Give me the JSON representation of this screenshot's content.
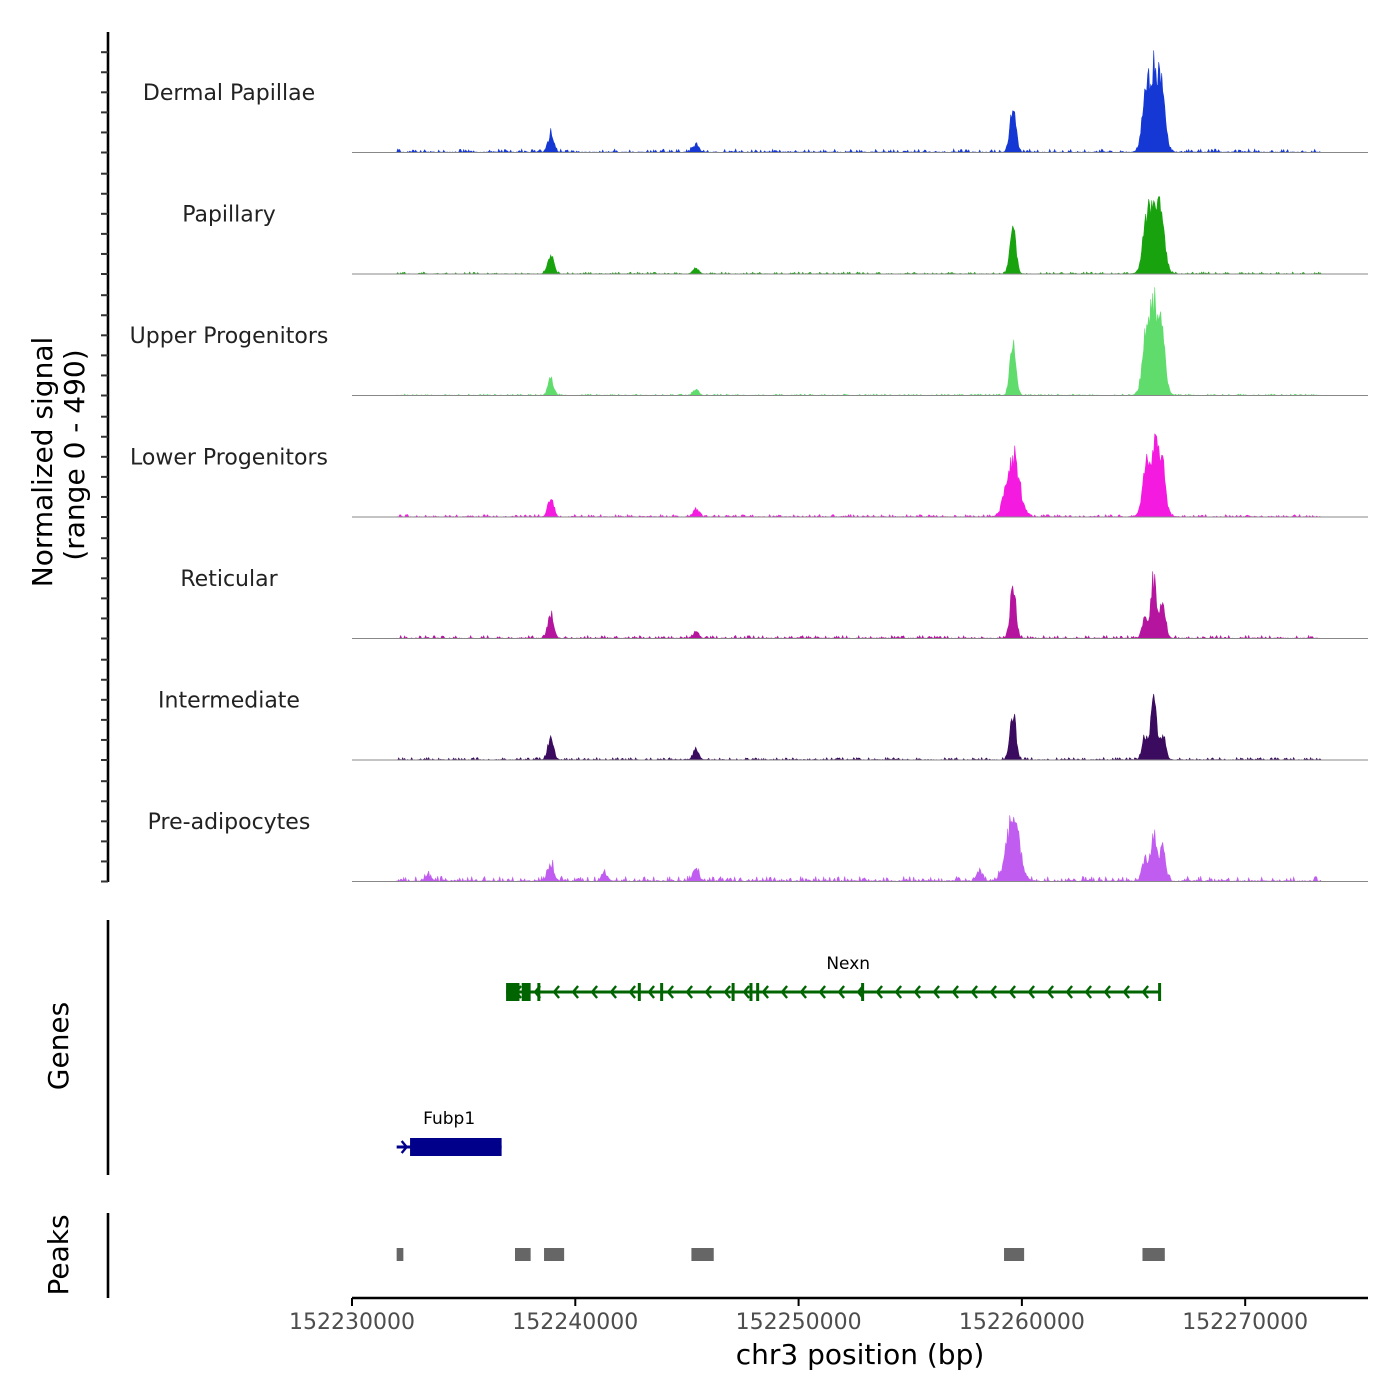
{
  "chart_data": {
    "type": "area",
    "title": "",
    "region": "chr3",
    "xlabel": "chr3 position (bp)",
    "xlim": [
      152230000,
      152275500
    ],
    "xticks": [
      152230000,
      152240000,
      152250000,
      152260000,
      152270000
    ],
    "xtick_labels": [
      "152230000",
      "152240000",
      "152250000",
      "152260000",
      "152270000"
    ],
    "coverage": {
      "ylabel_line1": "Normalized signal",
      "ylabel_line2": "(range 0 - 490)",
      "ylim": [
        0,
        490
      ],
      "track_start": 152232000,
      "track_end": 152273400,
      "tracks": [
        {
          "name": "Dermal Papillae",
          "color": "#1538d4",
          "peaks": [
            [
              152238900,
              90
            ],
            [
              152245400,
              40
            ],
            [
              152259600,
              230
            ],
            [
              152265900,
              420
            ],
            [
              152265500,
              140
            ],
            [
              152266300,
              180
            ]
          ],
          "noise": 14
        },
        {
          "name": "Papillary",
          "color": "#18a30e",
          "peaks": [
            [
              152238900,
              110
            ],
            [
              152245400,
              30
            ],
            [
              152259600,
              250
            ],
            [
              152265900,
              400
            ],
            [
              152265500,
              90
            ],
            [
              152266300,
              130
            ]
          ],
          "noise": 8
        },
        {
          "name": "Upper Progenitors",
          "color": "#5fdc6c",
          "peaks": [
            [
              152238900,
              80
            ],
            [
              152245400,
              30
            ],
            [
              152259600,
              300
            ],
            [
              152265900,
              470
            ],
            [
              152265500,
              120
            ],
            [
              152266300,
              150
            ]
          ],
          "noise": 6
        },
        {
          "name": "Lower Progenitors",
          "color": "#f41ae0",
          "peaks": [
            [
              152238900,
              100
            ],
            [
              152245400,
              40
            ],
            [
              152259600,
              310
            ],
            [
              152265900,
              360
            ],
            [
              152265500,
              120
            ],
            [
              152266300,
              170
            ]
          ],
          "noise": 10
        },
        {
          "name": "Reticular",
          "color": "#b5149f",
          "peaks": [
            [
              152238900,
              120
            ],
            [
              152245400,
              30
            ],
            [
              152259600,
              260
            ],
            [
              152265900,
              300
            ],
            [
              152265500,
              100
            ],
            [
              152266300,
              170
            ]
          ],
          "noise": 12
        },
        {
          "name": "Intermediate",
          "color": "#3a0b5e",
          "peaks": [
            [
              152238900,
              110
            ],
            [
              152245400,
              50
            ],
            [
              152259600,
              230
            ],
            [
              152265900,
              290
            ],
            [
              152265500,
              110
            ],
            [
              152266300,
              130
            ]
          ],
          "noise": 10
        },
        {
          "name": "Pre-adipocytes",
          "color": "#c15cf0",
          "peaks": [
            [
              152238900,
              90
            ],
            [
              152245400,
              60
            ],
            [
              152259600,
              310
            ],
            [
              152265900,
              250
            ],
            [
              152265500,
              110
            ],
            [
              152266300,
              170
            ],
            [
              152258100,
              50
            ],
            [
              152241300,
              40
            ],
            [
              152233400,
              30
            ]
          ],
          "noise": 22
        }
      ]
    },
    "genes": {
      "ylabel": "Genes",
      "items": [
        {
          "name": "Nexn",
          "start": 152236900,
          "end": 152266200,
          "strand": "-",
          "color": "#006400",
          "exons": [
            [
              152236900,
              152237500
            ],
            [
              152237600,
              152238000
            ],
            [
              152238300,
              152238400
            ],
            [
              152242800,
              152242900
            ],
            [
              152243800,
              152243900
            ],
            [
              152247000,
              152247100
            ],
            [
              152247800,
              152247900
            ],
            [
              152248100,
              152248200
            ],
            [
              152252800,
              152252900
            ],
            [
              152266100,
              152266200
            ]
          ]
        },
        {
          "name": "Fubp1",
          "start": 152232000,
          "end": 152236700,
          "strand": "+",
          "color": "#00008b",
          "exons": [
            [
              152232600,
              152236700
            ]
          ]
        }
      ]
    },
    "peaks": {
      "ylabel": "Peaks",
      "color": "#666666",
      "regions": [
        [
          152232000,
          152232300
        ],
        [
          152237300,
          152238000
        ],
        [
          152238600,
          152239500
        ],
        [
          152245200,
          152246200
        ],
        [
          152259200,
          152260100
        ],
        [
          152265400,
          152266400
        ]
      ]
    }
  }
}
